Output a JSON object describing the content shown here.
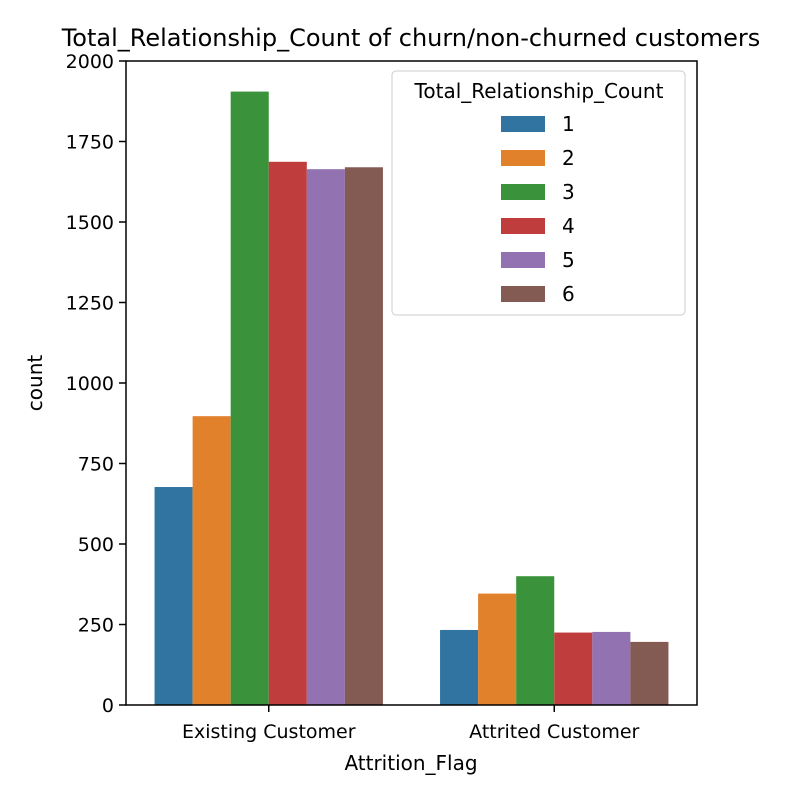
{
  "chart_data": {
    "type": "bar",
    "title": "Total_Relationship_Count of churn/non-churned customers",
    "xlabel": "Attrition_Flag",
    "ylabel": "count",
    "categories": [
      "Existing Customer",
      "Attrited Customer"
    ],
    "ylim": [
      0,
      2000
    ],
    "yticks": [
      0,
      250,
      500,
      750,
      1000,
      1250,
      1500,
      1750,
      2000
    ],
    "grid": false,
    "legend": {
      "title": "Total_Relationship_Count",
      "position": "top-right"
    },
    "series": [
      {
        "name": "1",
        "color": "#3274a1",
        "values": [
          677,
          233
        ]
      },
      {
        "name": "2",
        "color": "#e1812c",
        "values": [
          897,
          346
        ]
      },
      {
        "name": "3",
        "color": "#3a923a",
        "values": [
          1905,
          400
        ]
      },
      {
        "name": "4",
        "color": "#c03d3e",
        "values": [
          1687,
          225
        ]
      },
      {
        "name": "5",
        "color": "#9372b2",
        "values": [
          1664,
          227
        ]
      },
      {
        "name": "6",
        "color": "#845b53",
        "values": [
          1670,
          196
        ]
      }
    ]
  }
}
